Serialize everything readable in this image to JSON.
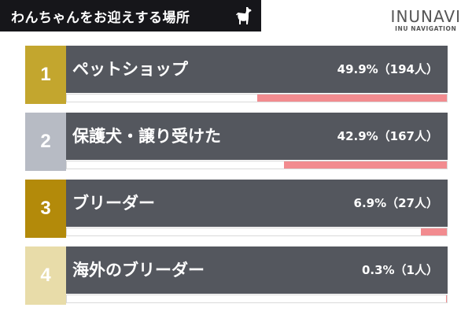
{
  "header": {
    "title": "わんちゃんをお迎えする場所",
    "brand_name": "INUNAVI",
    "brand_sub": "INU NAVIGATION"
  },
  "colors": {
    "title_bg": "#16161a",
    "row_bg": "#54575e",
    "bar_fill": "#f28b8f",
    "rank_colors": [
      "#c3a62e",
      "#b7bbc4",
      "#b38a0a",
      "#e8dca9"
    ]
  },
  "chart_data": {
    "type": "bar",
    "title": "わんちゃんをお迎えする場所",
    "unit": "%",
    "items": [
      {
        "rank": "1",
        "label": "ペットショップ",
        "percent": 49.9,
        "count": 194,
        "value_text": "49.9%（194人）"
      },
      {
        "rank": "2",
        "label": "保護犬・譲り受けた",
        "percent": 42.9,
        "count": 167,
        "value_text": "42.9%（167人）"
      },
      {
        "rank": "3",
        "label": "ブリーダー",
        "percent": 6.9,
        "count": 27,
        "value_text": "6.9%（27人）"
      },
      {
        "rank": "4",
        "label": "海外のブリーダー",
        "percent": 0.3,
        "count": 1,
        "value_text": "0.3%（1人）"
      }
    ]
  }
}
